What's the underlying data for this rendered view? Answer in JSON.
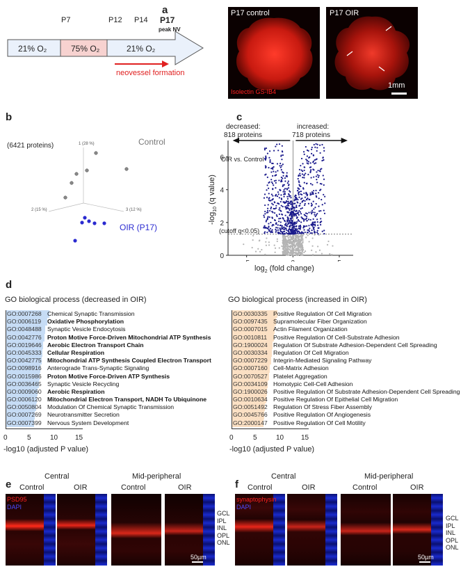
{
  "panels": {
    "a": "a",
    "b": "b",
    "c": "c",
    "d": "d",
    "e": "e",
    "f": "f"
  },
  "timeline": {
    "days": [
      "P7",
      "P12",
      "P14"
    ],
    "p17": "P17",
    "peak": "peak NV",
    "seg1": "21% O₂",
    "seg2": "75% O₂",
    "seg3": "21% O₂",
    "neovessel": "neovessel formation",
    "colors": {
      "hyperoxia": "#f7d2d0",
      "normoxia": "#eaf1fb",
      "arrow": "#e02020"
    }
  },
  "retina": {
    "control_label": "P17 control",
    "oir_label": "P17 OIR",
    "stain": "Isolectin GS-IB4",
    "scale": "1mm"
  },
  "pca": {
    "proteins": "(6421 proteins)",
    "control": "Control",
    "oir": "OIR (P17)",
    "axis1": "1 (28 %)",
    "axis2": "2 (15 %)",
    "axis3": "3 (12 %)"
  },
  "chart_data": {
    "type": "scatter",
    "title": "",
    "xlabel": "log2 (fold change)",
    "ylabel": "-log10 (q value)",
    "xlim": [
      -7,
      6.5
    ],
    "ylim": [
      0,
      7
    ],
    "xticks": [
      -5,
      0,
      5
    ],
    "yticks": [
      0,
      2,
      4,
      6
    ],
    "cutoff": {
      "label": "(cutoff q<0.05)",
      "value": 1.3
    },
    "decreased": {
      "title": "decreased:",
      "count": "818 proteins"
    },
    "increased": {
      "title": "increased:",
      "count": "718 proteins"
    },
    "comparison": "OIR vs. Control",
    "colors": {
      "significant": "#1a1a8c",
      "nonsignificant": "#b4b4b4"
    }
  },
  "go_decreased": {
    "title": "GO biological process (decreased in OIR)",
    "xlabel": "-log10 (adjusted P value)",
    "ticks": [
      "0",
      "5",
      "10",
      "15"
    ],
    "color": "#c6dcf5",
    "rows": [
      {
        "id": "GO:0007268",
        "desc": "Chemical Synaptic Transmission",
        "bold": false,
        "value": 9.3
      },
      {
        "id": "GO:0006119",
        "desc": "Oxidative Phosphorylation",
        "bold": true,
        "value": 8.9
      },
      {
        "id": "GO:0048488",
        "desc": "Synaptic Vesicle Endocytosis",
        "bold": false,
        "value": 8.5
      },
      {
        "id": "GO:0042776",
        "desc": "Proton Motive Force-Driven Mitochondrial ATP Synthesis",
        "bold": true,
        "value": 8.3
      },
      {
        "id": "GO:0019646",
        "desc": "Aerobic Electron Transport Chain",
        "bold": true,
        "value": 8.1
      },
      {
        "id": "GO:0045333",
        "desc": "Cellular Respiration",
        "bold": true,
        "value": 7.9
      },
      {
        "id": "GO:0042775",
        "desc": "Mitochondrial ATP Synthesis Coupled Electron Transport",
        "bold": true,
        "value": 7.7
      },
      {
        "id": "GO:0098916",
        "desc": "Anterograde Trans-Synaptic Signaling",
        "bold": false,
        "value": 7.5
      },
      {
        "id": "GO:0015986",
        "desc": "Proton Motive Force-Driven ATP Synthesis",
        "bold": true,
        "value": 7.3
      },
      {
        "id": "GO:0036465",
        "desc": "Synaptic Vesicle Recycling",
        "bold": false,
        "value": 7.1
      },
      {
        "id": "GO:0009060",
        "desc": "Aerobic Respiration",
        "bold": true,
        "value": 6.9
      },
      {
        "id": "GO:0006120",
        "desc": "Mitochondrial Electron Transport, NADH To Ubiquinone",
        "bold": true,
        "value": 6.7
      },
      {
        "id": "GO:0050804",
        "desc": "Modulation Of Chemical Synaptic Transmission",
        "bold": false,
        "value": 6.5
      },
      {
        "id": "GO:0007269",
        "desc": "Neurotransmitter Secretion",
        "bold": false,
        "value": 6.3
      },
      {
        "id": "GO:0007399",
        "desc": "Nervous System Development",
        "bold": false,
        "value": 6.1
      }
    ]
  },
  "go_increased": {
    "title": "GO biological process (increased in OIR)",
    "xlabel": "-log10 (adjusted P value)",
    "ticks": [
      "0",
      "5",
      "10",
      "15"
    ],
    "color": "#fbe0c4",
    "rows": [
      {
        "id": "GO:0030335",
        "desc": "Positive Regulation Of Cell Migration",
        "bold": false,
        "value": 9.8
      },
      {
        "id": "GO:0097435",
        "desc": "Supramolecular Fiber Organization",
        "bold": false,
        "value": 9.5
      },
      {
        "id": "GO:0007015",
        "desc": "Actin Filament Organization",
        "bold": false,
        "value": 9.2
      },
      {
        "id": "GO:0010811",
        "desc": "Positive Regulation Of Cell-Substrate Adhesion",
        "bold": false,
        "value": 9.0
      },
      {
        "id": "GO:1900024",
        "desc": "Regulation Of Substrate Adhesion-Dependent Cell Spreading",
        "bold": false,
        "value": 8.8
      },
      {
        "id": "GO:0030334",
        "desc": "Regulation Of Cell Migration",
        "bold": false,
        "value": 8.6
      },
      {
        "id": "GO:0007229",
        "desc": "Integrin-Mediated Signaling Pathway",
        "bold": false,
        "value": 8.4
      },
      {
        "id": "GO:0007160",
        "desc": "Cell-Matrix Adhesion",
        "bold": false,
        "value": 8.2
      },
      {
        "id": "GO:0070527",
        "desc": "Platelet Aggregation",
        "bold": false,
        "value": 8.0
      },
      {
        "id": "GO:0034109",
        "desc": "Homotypic Cell-Cell Adhesion",
        "bold": false,
        "value": 7.8
      },
      {
        "id": "GO:1900026",
        "desc": "Positive Regulation Of Substrate Adhesion-Dependent Cell Spreading",
        "bold": false,
        "value": 7.6
      },
      {
        "id": "GO:0010634",
        "desc": "Positive Regulation Of Epithelial Cell Migration",
        "bold": false,
        "value": 7.4
      },
      {
        "id": "GO:0051492",
        "desc": "Regulation Of Stress Fiber Assembly",
        "bold": false,
        "value": 7.2
      },
      {
        "id": "GO:0045766",
        "desc": "Positive Regulation Of Angiogenesis",
        "bold": false,
        "value": 7.0
      },
      {
        "id": "GO:2000147",
        "desc": "Positive Regulation Of Cell Motility",
        "bold": false,
        "value": 6.8
      }
    ]
  },
  "micro": {
    "central": "Central",
    "midperipheral": "Mid-peripheral",
    "control": "Control",
    "oir": "OIR",
    "layers": [
      "GCL",
      "IPL",
      "INL",
      "OPL",
      "ONL"
    ],
    "scale": "50µm",
    "e_stain": "PSD95",
    "f_stain": "synaptophysin",
    "dapi": "DAPI"
  }
}
